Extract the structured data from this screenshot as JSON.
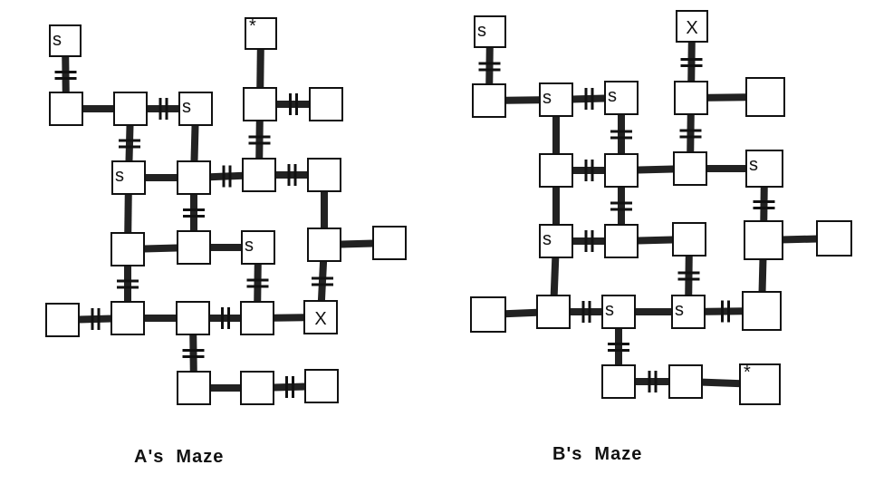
{
  "mazes": [
    {
      "caption": "A's  Maze",
      "rooms": [
        {
          "id": "a1",
          "label": "s"
        },
        {
          "id": "a2",
          "label": "*"
        },
        {
          "id": "a3",
          "label": ""
        },
        {
          "id": "a4",
          "label": ""
        },
        {
          "id": "a5",
          "label": "s"
        },
        {
          "id": "a6",
          "label": ""
        },
        {
          "id": "a7",
          "label": ""
        },
        {
          "id": "a8",
          "label": "s"
        },
        {
          "id": "a9",
          "label": ""
        },
        {
          "id": "a10",
          "label": ""
        },
        {
          "id": "a11",
          "label": ""
        },
        {
          "id": "a12",
          "label": ""
        },
        {
          "id": "a13",
          "label": ""
        },
        {
          "id": "a14",
          "label": "s"
        },
        {
          "id": "a15",
          "label": ""
        },
        {
          "id": "a16",
          "label": ""
        },
        {
          "id": "a17",
          "label": ""
        },
        {
          "id": "a18",
          "label": ""
        },
        {
          "id": "a19",
          "label": ""
        },
        {
          "id": "a20",
          "label": ""
        },
        {
          "id": "a21",
          "label": "X"
        },
        {
          "id": "a22",
          "label": ""
        },
        {
          "id": "a23",
          "label": ""
        },
        {
          "id": "a24",
          "label": ""
        }
      ],
      "connections": [
        {
          "from": "a1",
          "to": "a3",
          "door": true
        },
        {
          "from": "a2",
          "to": "a6",
          "door": false
        },
        {
          "from": "a3",
          "to": "a4",
          "door": false
        },
        {
          "from": "a4",
          "to": "a5",
          "door": true
        },
        {
          "from": "a6",
          "to": "a7",
          "door": true
        },
        {
          "from": "a4",
          "to": "a8",
          "door": true
        },
        {
          "from": "a5",
          "to": "a9",
          "door": false
        },
        {
          "from": "a6",
          "to": "a10",
          "door": true
        },
        {
          "from": "a8",
          "to": "a9",
          "door": false
        },
        {
          "from": "a9",
          "to": "a10",
          "door": true
        },
        {
          "from": "a10",
          "to": "a11",
          "door": true
        },
        {
          "from": "a8",
          "to": "a12",
          "door": false
        },
        {
          "from": "a9",
          "to": "a13",
          "door": true
        },
        {
          "from": "a12",
          "to": "a13",
          "door": false
        },
        {
          "from": "a13",
          "to": "a14",
          "door": false
        },
        {
          "from": "a11",
          "to": "a15",
          "door": false
        },
        {
          "from": "a15",
          "to": "a16",
          "door": false
        },
        {
          "from": "a12",
          "to": "a18",
          "door": true
        },
        {
          "from": "a14",
          "to": "a20",
          "door": true
        },
        {
          "from": "a15",
          "to": "a21",
          "door": true
        },
        {
          "from": "a17",
          "to": "a18",
          "door": true
        },
        {
          "from": "a18",
          "to": "a19",
          "door": false
        },
        {
          "from": "a19",
          "to": "a20",
          "door": true
        },
        {
          "from": "a20",
          "to": "a21",
          "door": false
        },
        {
          "from": "a19",
          "to": "a22",
          "door": true
        },
        {
          "from": "a22",
          "to": "a23",
          "door": false
        },
        {
          "from": "a23",
          "to": "a24",
          "door": true
        }
      ]
    },
    {
      "caption": "B's  Maze",
      "rooms": [
        {
          "id": "b1",
          "label": "s"
        },
        {
          "id": "b2",
          "label": "X"
        },
        {
          "id": "b3",
          "label": ""
        },
        {
          "id": "b4",
          "label": "s"
        },
        {
          "id": "b5",
          "label": "s"
        },
        {
          "id": "b6",
          "label": ""
        },
        {
          "id": "b7",
          "label": ""
        },
        {
          "id": "b8",
          "label": ""
        },
        {
          "id": "b9",
          "label": ""
        },
        {
          "id": "b10",
          "label": ""
        },
        {
          "id": "b11",
          "label": "s"
        },
        {
          "id": "b12",
          "label": "s"
        },
        {
          "id": "b13",
          "label": ""
        },
        {
          "id": "b14",
          "label": ""
        },
        {
          "id": "b15",
          "label": ""
        },
        {
          "id": "b16",
          "label": ""
        },
        {
          "id": "b17",
          "label": ""
        },
        {
          "id": "b18",
          "label": ""
        },
        {
          "id": "b19",
          "label": "s"
        },
        {
          "id": "b20",
          "label": "s"
        },
        {
          "id": "b21",
          "label": ""
        },
        {
          "id": "b22",
          "label": ""
        },
        {
          "id": "b23",
          "label": ""
        },
        {
          "id": "b24",
          "label": "*"
        }
      ],
      "connections": [
        {
          "from": "b1",
          "to": "b3",
          "door": true
        },
        {
          "from": "b2",
          "to": "b6",
          "door": true
        },
        {
          "from": "b3",
          "to": "b4",
          "door": false
        },
        {
          "from": "b4",
          "to": "b5",
          "door": true
        },
        {
          "from": "b6",
          "to": "b7",
          "door": false
        },
        {
          "from": "b4",
          "to": "b8",
          "door": false
        },
        {
          "from": "b5",
          "to": "b9",
          "door": true
        },
        {
          "from": "b6",
          "to": "b10",
          "door": true
        },
        {
          "from": "b8",
          "to": "b9",
          "door": true
        },
        {
          "from": "b9",
          "to": "b10",
          "door": false
        },
        {
          "from": "b10",
          "to": "b11",
          "door": false
        },
        {
          "from": "b8",
          "to": "b12",
          "door": false
        },
        {
          "from": "b9",
          "to": "b13",
          "door": true
        },
        {
          "from": "b11",
          "to": "b15",
          "door": true
        },
        {
          "from": "b12",
          "to": "b13",
          "door": true
        },
        {
          "from": "b13",
          "to": "b14",
          "door": false
        },
        {
          "from": "b15",
          "to": "b16",
          "door": false
        },
        {
          "from": "b12",
          "to": "b18",
          "door": false
        },
        {
          "from": "b14",
          "to": "b20",
          "door": true
        },
        {
          "from": "b15",
          "to": "b21",
          "door": false
        },
        {
          "from": "b17",
          "to": "b18",
          "door": false
        },
        {
          "from": "b18",
          "to": "b19",
          "door": true
        },
        {
          "from": "b19",
          "to": "b20",
          "door": false
        },
        {
          "from": "b20",
          "to": "b21",
          "door": true
        },
        {
          "from": "b19",
          "to": "b22",
          "door": true
        },
        {
          "from": "b22",
          "to": "b23",
          "door": true
        },
        {
          "from": "b23",
          "to": "b24",
          "door": false
        }
      ]
    }
  ]
}
